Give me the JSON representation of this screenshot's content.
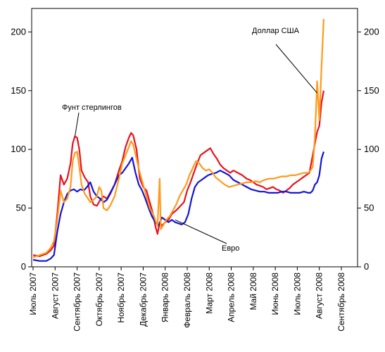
{
  "chart_data": {
    "type": "line",
    "title": "",
    "xlabel": "",
    "ylabel": "",
    "ylim": [
      0,
      220
    ],
    "yticks": [
      0,
      50,
      100,
      150,
      200
    ],
    "grid": false,
    "legend": "none",
    "x": [
      "Июль 2007",
      "Август 2007",
      "Сентябрь 2007",
      "Октябрь 2007",
      "Ноябрь 2007",
      "Декабрь 2007",
      "Январь 2008",
      "Февраль 2008",
      "Март 2008",
      "Апрель 2008",
      "Май 2008",
      "Июнь 2008",
      "Июль 2008",
      "Август 2008",
      "Сентябрь 2008"
    ],
    "series": [
      {
        "name": "Фунт стерлингов",
        "color": "#e8121d",
        "points": [
          [
            0,
            10
          ],
          [
            0.3,
            9
          ],
          [
            0.6,
            11
          ],
          [
            0.8,
            14
          ],
          [
            0.95,
            18
          ],
          [
            1.1,
            45
          ],
          [
            1.25,
            78
          ],
          [
            1.4,
            70
          ],
          [
            1.55,
            75
          ],
          [
            1.7,
            88
          ],
          [
            1.8,
            105
          ],
          [
            1.9,
            111
          ],
          [
            2.0,
            110
          ],
          [
            2.1,
            100
          ],
          [
            2.2,
            82
          ],
          [
            2.35,
            76
          ],
          [
            2.5,
            72
          ],
          [
            2.6,
            60
          ],
          [
            2.75,
            53
          ],
          [
            2.9,
            52
          ],
          [
            3.05,
            57
          ],
          [
            3.2,
            60
          ],
          [
            3.35,
            58
          ],
          [
            3.5,
            63
          ],
          [
            3.7,
            70
          ],
          [
            3.9,
            82
          ],
          [
            4.05,
            90
          ],
          [
            4.2,
            102
          ],
          [
            4.35,
            110
          ],
          [
            4.45,
            114
          ],
          [
            4.55,
            112
          ],
          [
            4.7,
            100
          ],
          [
            4.85,
            75
          ],
          [
            5.0,
            68
          ],
          [
            5.15,
            65
          ],
          [
            5.3,
            55
          ],
          [
            5.45,
            45
          ],
          [
            5.55,
            35
          ],
          [
            5.65,
            28
          ],
          [
            5.75,
            38
          ],
          [
            5.85,
            35
          ],
          [
            6.0,
            38
          ],
          [
            6.15,
            40
          ],
          [
            6.3,
            45
          ],
          [
            6.5,
            48
          ],
          [
            6.7,
            52
          ],
          [
            6.85,
            55
          ],
          [
            7.0,
            65
          ],
          [
            7.15,
            72
          ],
          [
            7.3,
            80
          ],
          [
            7.45,
            88
          ],
          [
            7.6,
            95
          ],
          [
            7.75,
            97
          ],
          [
            7.9,
            99
          ],
          [
            8.05,
            101
          ],
          [
            8.2,
            96
          ],
          [
            8.35,
            92
          ],
          [
            8.5,
            87
          ],
          [
            8.65,
            84
          ],
          [
            8.8,
            82
          ],
          [
            8.95,
            80
          ],
          [
            9.1,
            82
          ],
          [
            9.3,
            80
          ],
          [
            9.5,
            78
          ],
          [
            9.7,
            75
          ],
          [
            9.85,
            74
          ],
          [
            10.0,
            72
          ],
          [
            10.15,
            70
          ],
          [
            10.3,
            69
          ],
          [
            10.45,
            68
          ],
          [
            10.6,
            66
          ],
          [
            10.75,
            67
          ],
          [
            10.9,
            68
          ],
          [
            11.05,
            66
          ],
          [
            11.2,
            65
          ],
          [
            11.35,
            63
          ],
          [
            11.5,
            65
          ],
          [
            11.65,
            67
          ],
          [
            11.8,
            70
          ],
          [
            11.95,
            72
          ],
          [
            12.1,
            74
          ],
          [
            12.25,
            76
          ],
          [
            12.4,
            78
          ],
          [
            12.55,
            80
          ],
          [
            12.7,
            95
          ],
          [
            12.8,
            105
          ],
          [
            12.9,
            115
          ],
          [
            13.0,
            120
          ],
          [
            13.1,
            140
          ],
          [
            13.2,
            150
          ]
        ]
      },
      {
        "name": "Евро",
        "color": "#1414d8",
        "points": [
          [
            0,
            6
          ],
          [
            0.3,
            5
          ],
          [
            0.6,
            5
          ],
          [
            0.8,
            7
          ],
          [
            0.95,
            10
          ],
          [
            1.1,
            30
          ],
          [
            1.25,
            45
          ],
          [
            1.4,
            55
          ],
          [
            1.55,
            62
          ],
          [
            1.7,
            65
          ],
          [
            1.85,
            66
          ],
          [
            2.0,
            64
          ],
          [
            2.15,
            66
          ],
          [
            2.3,
            65
          ],
          [
            2.45,
            68
          ],
          [
            2.6,
            72
          ],
          [
            2.75,
            64
          ],
          [
            2.9,
            60
          ],
          [
            3.05,
            58
          ],
          [
            3.2,
            55
          ],
          [
            3.35,
            57
          ],
          [
            3.5,
            62
          ],
          [
            3.7,
            70
          ],
          [
            3.9,
            78
          ],
          [
            4.05,
            80
          ],
          [
            4.2,
            84
          ],
          [
            4.35,
            88
          ],
          [
            4.5,
            93
          ],
          [
            4.65,
            80
          ],
          [
            4.8,
            70
          ],
          [
            4.95,
            65
          ],
          [
            5.1,
            58
          ],
          [
            5.25,
            50
          ],
          [
            5.4,
            43
          ],
          [
            5.55,
            38
          ],
          [
            5.7,
            35
          ],
          [
            5.85,
            42
          ],
          [
            6.0,
            40
          ],
          [
            6.15,
            38
          ],
          [
            6.3,
            40
          ],
          [
            6.45,
            38
          ],
          [
            6.6,
            37
          ],
          [
            6.75,
            36
          ],
          [
            6.9,
            38
          ],
          [
            7.05,
            45
          ],
          [
            7.2,
            58
          ],
          [
            7.35,
            68
          ],
          [
            7.5,
            72
          ],
          [
            7.65,
            74
          ],
          [
            7.8,
            76
          ],
          [
            7.95,
            78
          ],
          [
            8.1,
            79
          ],
          [
            8.3,
            80
          ],
          [
            8.5,
            82
          ],
          [
            8.7,
            80
          ],
          [
            8.9,
            78
          ],
          [
            9.1,
            74
          ],
          [
            9.3,
            72
          ],
          [
            9.5,
            70
          ],
          [
            9.7,
            68
          ],
          [
            9.9,
            66
          ],
          [
            10.1,
            65
          ],
          [
            10.3,
            64
          ],
          [
            10.5,
            64
          ],
          [
            10.7,
            63
          ],
          [
            10.9,
            63
          ],
          [
            11.1,
            63
          ],
          [
            11.3,
            64
          ],
          [
            11.5,
            64
          ],
          [
            11.7,
            63
          ],
          [
            11.9,
            63
          ],
          [
            12.1,
            63
          ],
          [
            12.3,
            64
          ],
          [
            12.5,
            63
          ],
          [
            12.6,
            63
          ],
          [
            12.7,
            65
          ],
          [
            12.8,
            70
          ],
          [
            12.9,
            72
          ],
          [
            13.0,
            78
          ],
          [
            13.1,
            92
          ],
          [
            13.2,
            98
          ]
        ]
      },
      {
        "name": "Доллар США",
        "color": "#ff9a1a",
        "points": [
          [
            0,
            8
          ],
          [
            0.3,
            10
          ],
          [
            0.6,
            12
          ],
          [
            0.8,
            16
          ],
          [
            0.95,
            22
          ],
          [
            1.1,
            40
          ],
          [
            1.25,
            65
          ],
          [
            1.4,
            55
          ],
          [
            1.55,
            58
          ],
          [
            1.7,
            68
          ],
          [
            1.8,
            90
          ],
          [
            1.9,
            97
          ],
          [
            2.0,
            98
          ],
          [
            2.1,
            85
          ],
          [
            2.2,
            70
          ],
          [
            2.35,
            62
          ],
          [
            2.5,
            58
          ],
          [
            2.6,
            55
          ],
          [
            2.75,
            57
          ],
          [
            2.9,
            60
          ],
          [
            3.0,
            68
          ],
          [
            3.1,
            65
          ],
          [
            3.2,
            50
          ],
          [
            3.35,
            48
          ],
          [
            3.5,
            52
          ],
          [
            3.7,
            60
          ],
          [
            3.9,
            75
          ],
          [
            4.05,
            88
          ],
          [
            4.2,
            95
          ],
          [
            4.35,
            102
          ],
          [
            4.45,
            107
          ],
          [
            4.55,
            104
          ],
          [
            4.7,
            92
          ],
          [
            4.85,
            80
          ],
          [
            5.0,
            70
          ],
          [
            5.15,
            60
          ],
          [
            5.3,
            50
          ],
          [
            5.45,
            45
          ],
          [
            5.55,
            40
          ],
          [
            5.65,
            35
          ],
          [
            5.75,
            75
          ],
          [
            5.8,
            32
          ],
          [
            5.9,
            35
          ],
          [
            6.05,
            40
          ],
          [
            6.2,
            43
          ],
          [
            6.35,
            48
          ],
          [
            6.5,
            53
          ],
          [
            6.65,
            60
          ],
          [
            6.8,
            65
          ],
          [
            6.95,
            70
          ],
          [
            7.1,
            78
          ],
          [
            7.25,
            84
          ],
          [
            7.4,
            90
          ],
          [
            7.55,
            88
          ],
          [
            7.7,
            84
          ],
          [
            7.85,
            82
          ],
          [
            8.0,
            83
          ],
          [
            8.15,
            80
          ],
          [
            8.3,
            76
          ],
          [
            8.5,
            73
          ],
          [
            8.7,
            70
          ],
          [
            8.9,
            68
          ],
          [
            9.1,
            69
          ],
          [
            9.3,
            70
          ],
          [
            9.5,
            71
          ],
          [
            9.7,
            72
          ],
          [
            9.9,
            72
          ],
          [
            10.1,
            73
          ],
          [
            10.3,
            72
          ],
          [
            10.5,
            74
          ],
          [
            10.7,
            75
          ],
          [
            10.9,
            75
          ],
          [
            11.1,
            76
          ],
          [
            11.3,
            77
          ],
          [
            11.5,
            77
          ],
          [
            11.7,
            78
          ],
          [
            11.9,
            78
          ],
          [
            12.1,
            79
          ],
          [
            12.3,
            80
          ],
          [
            12.5,
            80
          ],
          [
            12.6,
            82
          ],
          [
            12.7,
            85
          ],
          [
            12.8,
            110
          ],
          [
            12.9,
            158
          ],
          [
            13.0,
            125
          ],
          [
            13.1,
            170
          ],
          [
            13.2,
            211
          ]
        ]
      }
    ],
    "annotations": [
      {
        "text": "Фунт стерлингов",
        "series": "Фунт стерлингов"
      },
      {
        "text": "Доллар США",
        "series": "Доллар США"
      },
      {
        "text": "Евро",
        "series": "Евро"
      }
    ]
  }
}
